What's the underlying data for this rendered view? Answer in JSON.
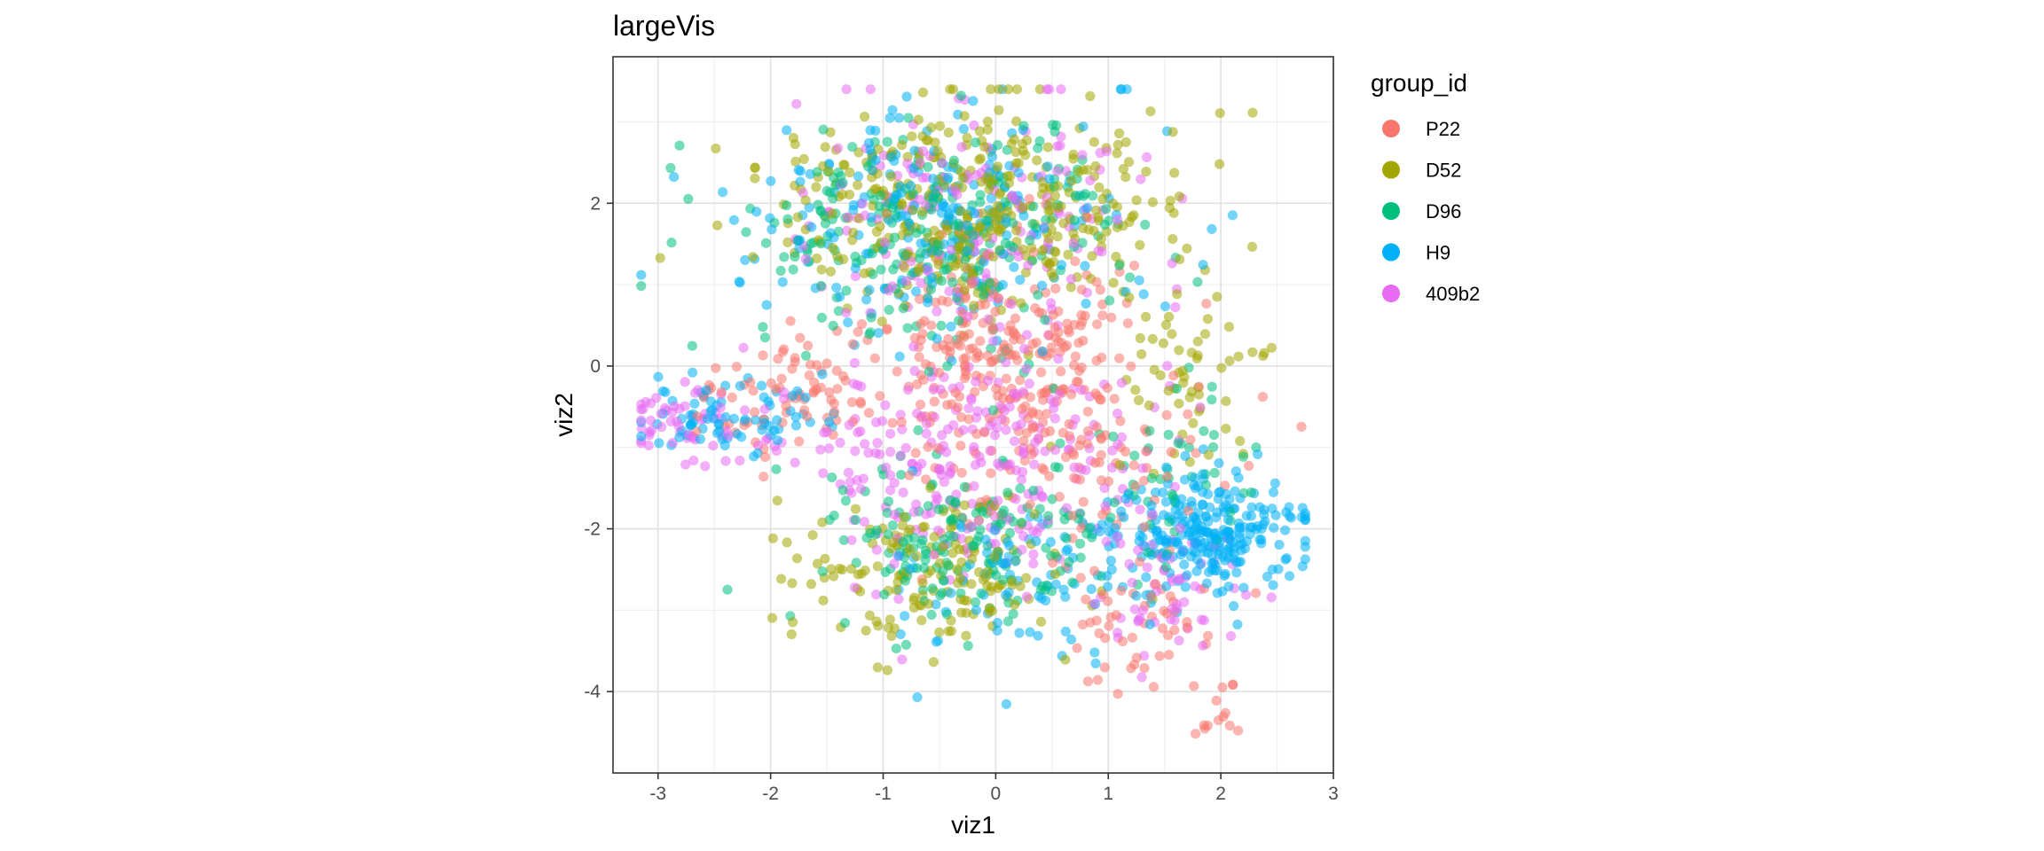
{
  "chart_data": {
    "type": "scatter",
    "title": "largeVis",
    "xlabel": "viz1",
    "ylabel": "viz2",
    "xlim": [
      -3.4,
      3.0
    ],
    "ylim": [
      -5.0,
      3.8
    ],
    "x_ticks": [
      -3,
      -2,
      -1,
      0,
      1,
      2,
      3
    ],
    "y_ticks": [
      -4,
      -2,
      0,
      2
    ],
    "x_tick_labels": [
      "-3",
      "-2",
      "-1",
      "0",
      "1",
      "2",
      "3"
    ],
    "y_tick_labels": [
      "-4",
      "-2",
      "0",
      "2"
    ],
    "grid": true,
    "legend": {
      "title": "group_id",
      "position": "right"
    },
    "series": [
      {
        "name": "P22",
        "color": "#F8766D",
        "clusters": [
          {
            "cx": 0.1,
            "cy": 0.3,
            "sx": 0.55,
            "sy": 0.6,
            "n": 220
          },
          {
            "cx": -1.8,
            "cy": -0.4,
            "sx": 0.45,
            "sy": 0.4,
            "n": 80
          },
          {
            "cx": 0.6,
            "cy": -1.0,
            "sx": 0.7,
            "sy": 0.6,
            "n": 120
          },
          {
            "cx": 1.3,
            "cy": -3.2,
            "sx": 0.35,
            "sy": 0.4,
            "n": 50
          },
          {
            "cx": 2.0,
            "cy": -4.3,
            "sx": 0.12,
            "sy": 0.2,
            "n": 14
          }
        ]
      },
      {
        "name": "D52",
        "color": "#A3A500",
        "clusters": [
          {
            "cx": -0.2,
            "cy": 1.9,
            "sx": 0.85,
            "sy": 0.65,
            "n": 380
          },
          {
            "cx": -0.5,
            "cy": -2.5,
            "sx": 0.65,
            "sy": 0.5,
            "n": 160
          },
          {
            "cx": 1.7,
            "cy": 0.0,
            "sx": 0.35,
            "sy": 0.6,
            "n": 60
          }
        ]
      },
      {
        "name": "D96",
        "color": "#00BF7D",
        "clusters": [
          {
            "cx": -0.5,
            "cy": 1.6,
            "sx": 0.85,
            "sy": 0.7,
            "n": 250
          },
          {
            "cx": -0.3,
            "cy": -2.2,
            "sx": 0.65,
            "sy": 0.55,
            "n": 170
          },
          {
            "cx": 1.6,
            "cy": -1.3,
            "sx": 0.45,
            "sy": 0.5,
            "n": 50
          }
        ]
      },
      {
        "name": "H9",
        "color": "#00B0F6",
        "clusters": [
          {
            "cx": 1.9,
            "cy": -2.0,
            "sx": 0.4,
            "sy": 0.35,
            "n": 260
          },
          {
            "cx": -0.5,
            "cy": 1.8,
            "sx": 0.85,
            "sy": 0.7,
            "n": 230
          },
          {
            "cx": -2.4,
            "cy": -0.6,
            "sx": 0.45,
            "sy": 0.28,
            "n": 80
          },
          {
            "cx": 0.3,
            "cy": -2.6,
            "sx": 0.6,
            "sy": 0.5,
            "n": 90
          }
        ]
      },
      {
        "name": "409b2",
        "color": "#E76BF3",
        "clusters": [
          {
            "cx": -0.2,
            "cy": -1.2,
            "sx": 0.8,
            "sy": 0.7,
            "n": 260
          },
          {
            "cx": -2.7,
            "cy": -0.7,
            "sx": 0.35,
            "sy": 0.22,
            "n": 60
          },
          {
            "cx": -0.2,
            "cy": 1.8,
            "sx": 0.8,
            "sy": 0.7,
            "n": 170
          },
          {
            "cx": 1.5,
            "cy": -2.7,
            "sx": 0.4,
            "sy": 0.4,
            "n": 60
          }
        ]
      }
    ]
  }
}
